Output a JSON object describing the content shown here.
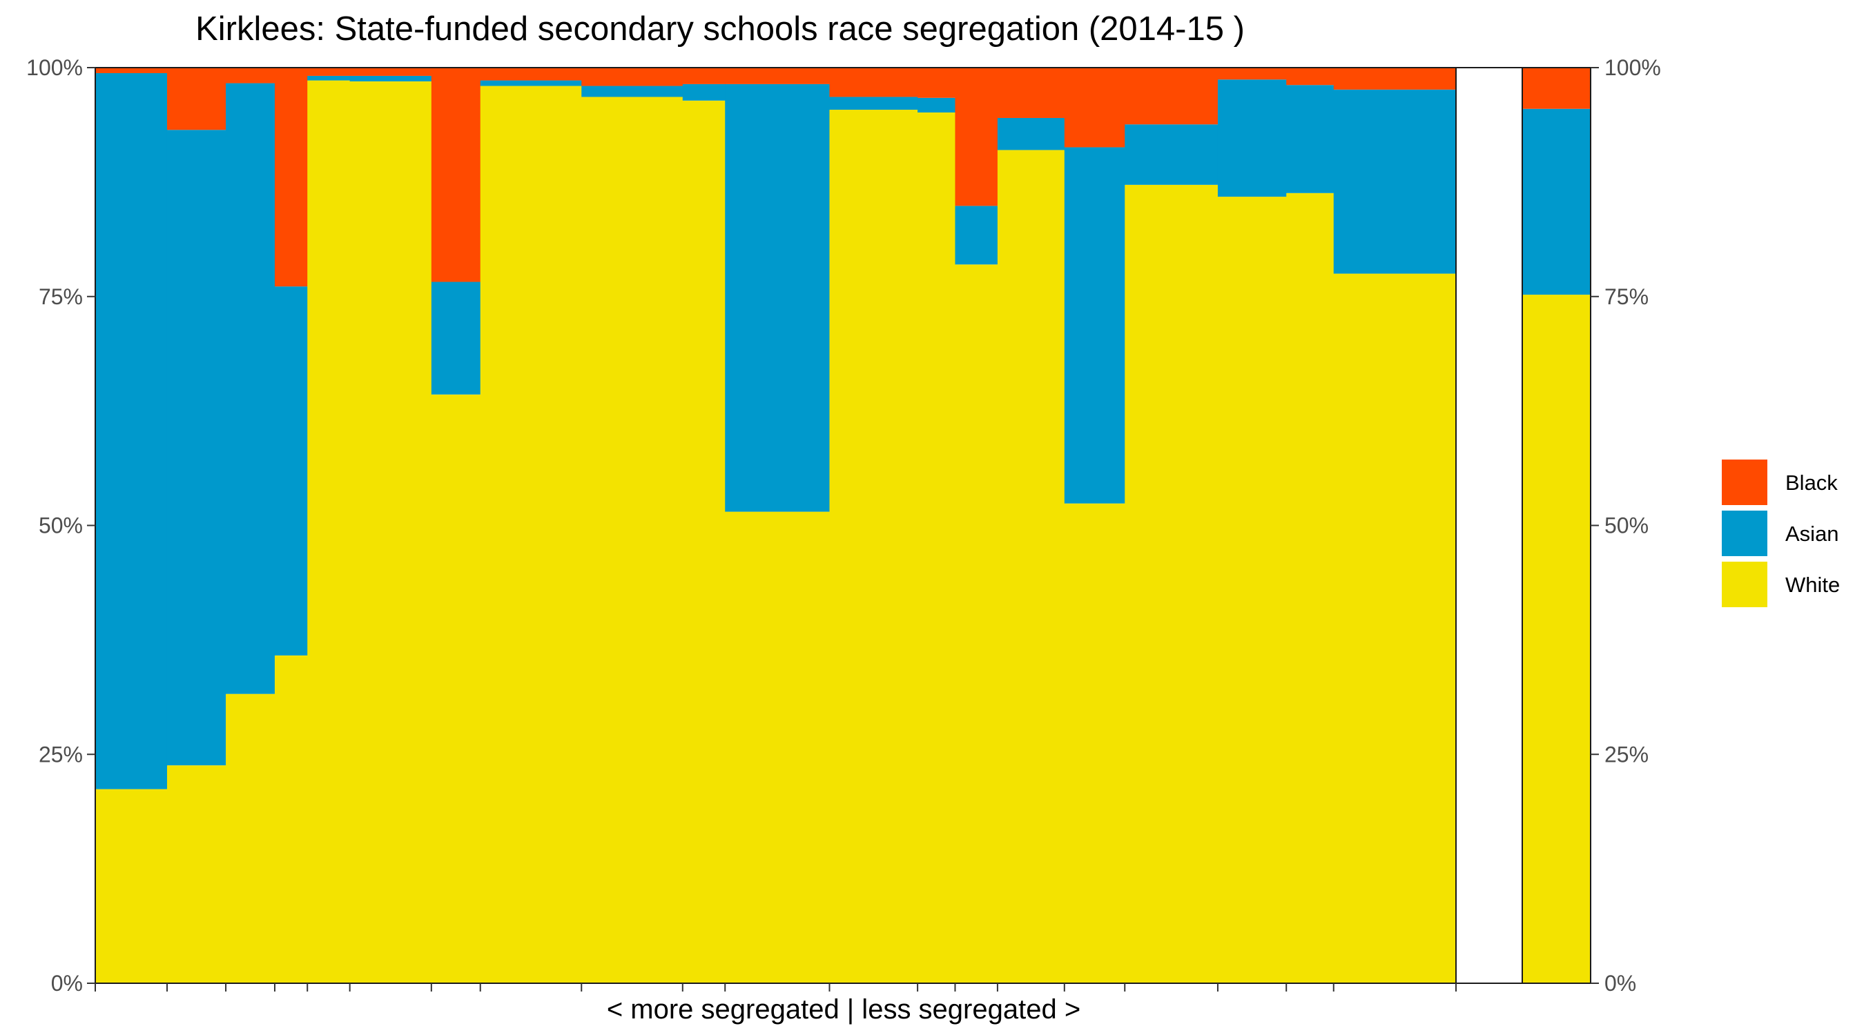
{
  "chart_data": {
    "type": "bar",
    "subtype": "stacked-100-variable-width",
    "title": "Kirklees: State-funded secondary schools race segregation (2014-15 )",
    "xlabel": "< more segregated | less segregated >",
    "ylabel": "",
    "ylim": [
      0,
      100
    ],
    "y_ticks": [
      "0%",
      "25%",
      "50%",
      "75%",
      "100%"
    ],
    "y_tick_values": [
      0,
      25,
      50,
      75,
      100
    ],
    "secondary_y_axis": true,
    "grid": false,
    "legend_position": "right",
    "stack_order": [
      "White",
      "Asian",
      "Black"
    ],
    "legend_order": [
      "Black",
      "Asian",
      "White"
    ],
    "colors": {
      "White": "#f3e300",
      "Asian": "#0099cc",
      "Black": "#ff4a00"
    },
    "schools": [
      {
        "width": 4.4,
        "White": 21.2,
        "Asian": 78.2,
        "Black": 0.6
      },
      {
        "width": 3.6,
        "White": 23.8,
        "Asian": 69.4,
        "Black": 6.8
      },
      {
        "width": 3.0,
        "White": 31.6,
        "Asian": 66.7,
        "Black": 1.7
      },
      {
        "width": 2.0,
        "White": 35.8,
        "Asian": 40.3,
        "Black": 23.9
      },
      {
        "width": 2.6,
        "White": 98.6,
        "Asian": 0.5,
        "Black": 0.9
      },
      {
        "width": 5.0,
        "White": 98.5,
        "Asian": 0.6,
        "Black": 0.9
      },
      {
        "width": 3.0,
        "White": 64.3,
        "Asian": 12.3,
        "Black": 23.4
      },
      {
        "width": 6.2,
        "White": 98.0,
        "Asian": 0.6,
        "Black": 1.4
      },
      {
        "width": 6.2,
        "White": 96.8,
        "Asian": 1.2,
        "Black": 2.0
      },
      {
        "width": 2.6,
        "White": 96.4,
        "Asian": 1.8,
        "Black": 1.8
      },
      {
        "width": 6.4,
        "White": 51.5,
        "Asian": 46.7,
        "Black": 1.8
      },
      {
        "width": 5.4,
        "White": 95.4,
        "Asian": 1.4,
        "Black": 3.2
      },
      {
        "width": 2.3,
        "White": 95.1,
        "Asian": 1.6,
        "Black": 3.3
      },
      {
        "width": 2.6,
        "White": 78.5,
        "Asian": 6.4,
        "Black": 15.1
      },
      {
        "width": 4.1,
        "White": 91.0,
        "Asian": 3.5,
        "Black": 5.5
      },
      {
        "width": 3.7,
        "White": 52.4,
        "Asian": 38.9,
        "Black": 8.7
      },
      {
        "width": 5.7,
        "White": 87.2,
        "Asian": 6.6,
        "Black": 6.2
      },
      {
        "width": 4.2,
        "White": 85.9,
        "Asian": 12.8,
        "Black": 1.3
      },
      {
        "width": 2.9,
        "White": 86.3,
        "Asian": 11.8,
        "Black": 1.9
      },
      {
        "width": 7.5,
        "White": 77.5,
        "Asian": 20.1,
        "Black": 2.4
      }
    ],
    "overall": {
      "White": 75.2,
      "Asian": 20.3,
      "Black": 4.5
    }
  }
}
